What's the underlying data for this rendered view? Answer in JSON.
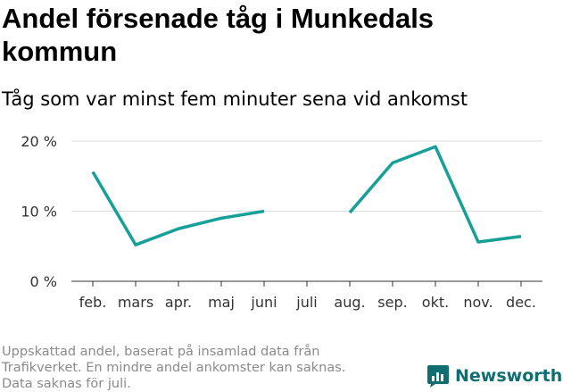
{
  "header": {
    "title": "Andel försenade tåg i Munkedals kommun",
    "subtitle": "Tåg som var minst fem minuter sena vid ankomst"
  },
  "chart_data": {
    "type": "line",
    "categories": [
      "feb.",
      "mars",
      "apr.",
      "maj",
      "juni",
      "juli",
      "aug.",
      "sep.",
      "okt.",
      "nov.",
      "dec."
    ],
    "series": [
      {
        "name": "Andel försenade tåg",
        "values": [
          15.6,
          5.2,
          7.5,
          9.0,
          10.0,
          null,
          9.8,
          16.9,
          19.2,
          5.6,
          6.4
        ],
        "color": "#17a098"
      }
    ],
    "ylim": [
      0,
      20
    ],
    "yticks": [
      {
        "value": 0,
        "label": "0 %"
      },
      {
        "value": 10,
        "label": "10 %"
      },
      {
        "value": 20,
        "label": "20 %"
      }
    ],
    "xlabel": "",
    "ylabel": "",
    "grid": true,
    "gridColor": "#dcdcdc",
    "axisColor": "#333333"
  },
  "footnote": {
    "lines": [
      "Uppskattad andel, baserat på insamlad data från",
      "Trafikverket. En mindre andel ankomster kan saknas.",
      "Data saknas för juli."
    ]
  },
  "brand": {
    "name": "Newsworthy",
    "icon": "bar-chart-speech-icon",
    "color": "#0f6e70"
  }
}
